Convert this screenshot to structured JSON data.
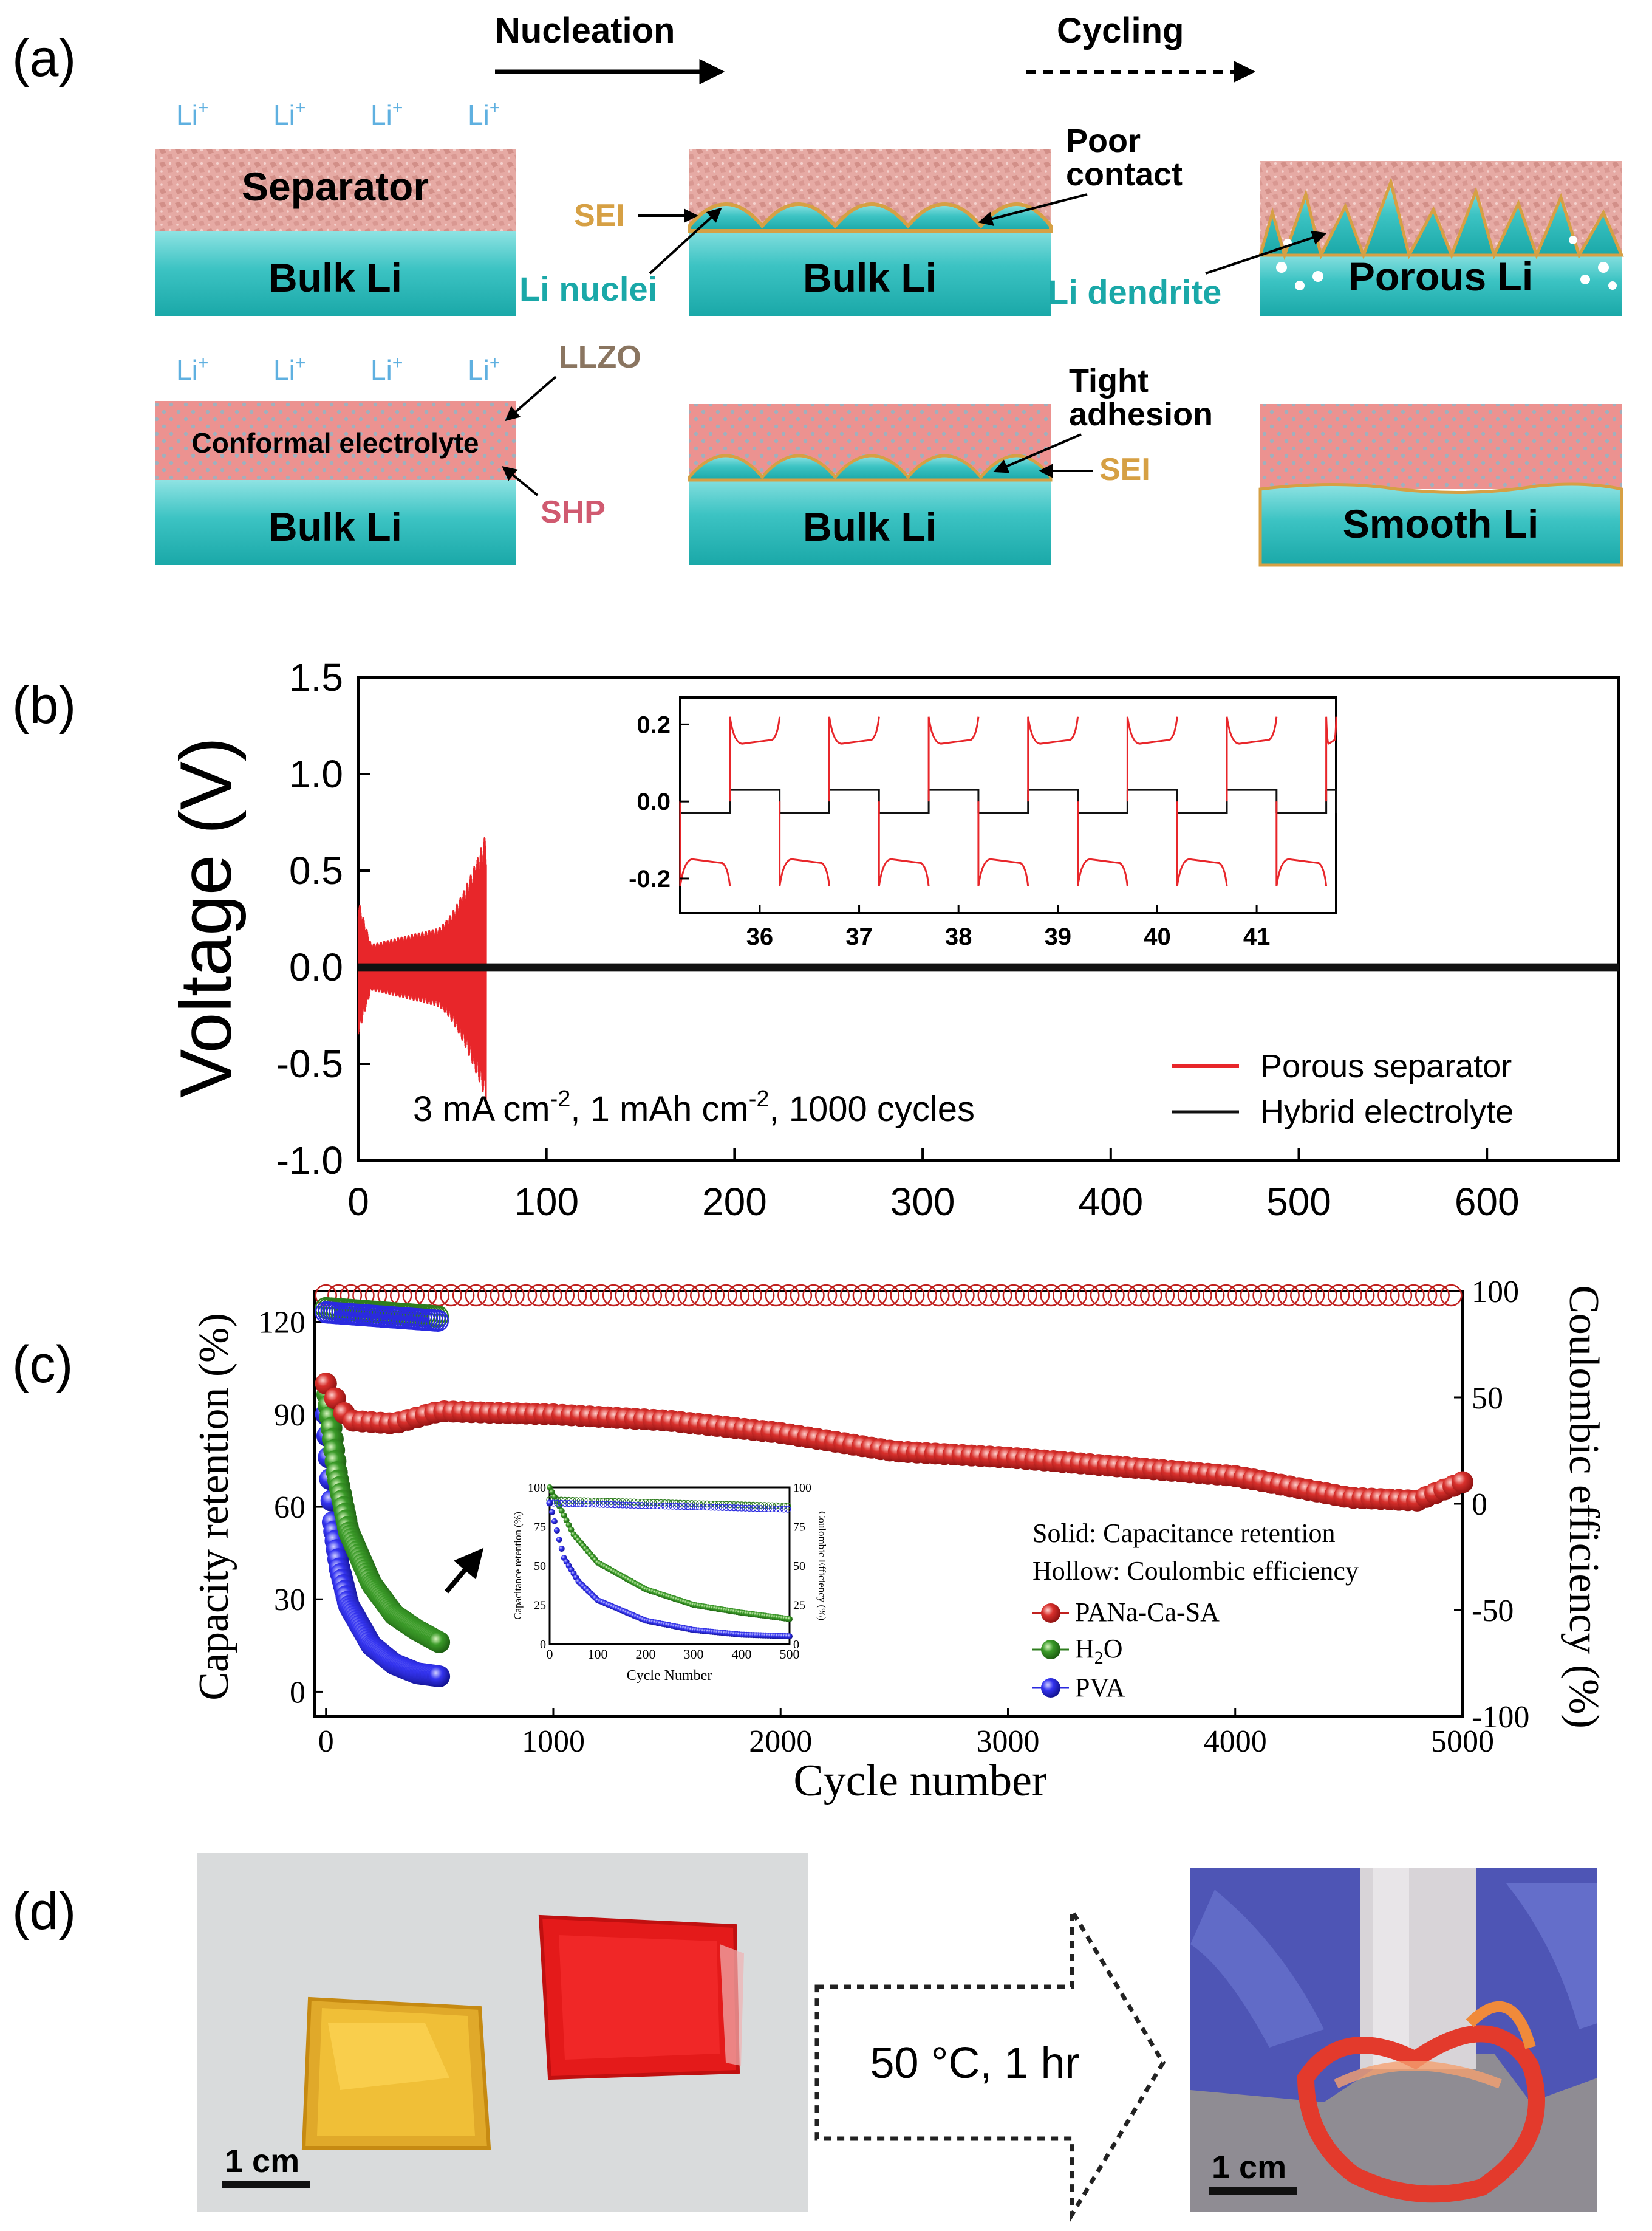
{
  "panel_labels": {
    "a": "(a)",
    "b": "(b)",
    "c": "(c)",
    "d": "(d)"
  },
  "panel_a": {
    "nucleation": "Nucleation",
    "cycling": "Cycling",
    "li_plus": "Li",
    "li_plus_sup": "+",
    "separator": "Separator",
    "bulk_li": "Bulk Li",
    "sei": "SEI",
    "li_nuclei": "Li nuclei",
    "poor_contact_1": "Poor",
    "poor_contact_2": "contact",
    "li_dendrite": "Li dendrite",
    "porous_li": "Porous Li",
    "llzo": "LLZO",
    "conformal_electrolyte": "Conformal electrolyte",
    "shp": "SHP",
    "tight_adhesion_1": "Tight",
    "tight_adhesion_2": "adhesion",
    "smooth_li": "Smooth Li",
    "colors": {
      "li": "#3cc3c3",
      "separator": "#d9908c",
      "sei": "#d6a044",
      "electrolyte": "#e88a88"
    }
  },
  "panel_b": {
    "chart_data": {
      "type": "line",
      "ylabel": "Voltage (V)",
      "xlabel": "",
      "xlim": [
        0,
        670
      ],
      "ylim": [
        -1.0,
        1.5
      ],
      "x_ticks": [
        "0",
        "100",
        "200",
        "300",
        "400",
        "500",
        "600"
      ],
      "y_ticks": [
        "1.5",
        "1.0",
        "0.5",
        "0.0",
        "-0.5",
        "-1.0"
      ],
      "condition_text": "3 mA cm",
      "condition_sup1": "-2",
      "condition_mid": ", 1 mAh cm",
      "condition_sup2": "-2",
      "condition_end": ", 1000 cycles",
      "series": [
        {
          "name": "Porous separator",
          "color": "#e8262a",
          "range_cycles": [
            0,
            68
          ],
          "amplitude_start": 0.35,
          "amplitude_mid": 0.12,
          "amplitude_end": 0.7
        },
        {
          "name": "Hybrid electrolyte",
          "color": "#111111",
          "range_cycles": [
            0,
            670
          ],
          "amplitude": 0.02
        }
      ],
      "inset": {
        "x_ticks": [
          "36",
          "37",
          "38",
          "39",
          "40",
          "41"
        ],
        "y_ticks": [
          "0.2",
          "0.0",
          "-0.2"
        ],
        "xlim": [
          35.2,
          41.8
        ],
        "ylim": [
          -0.29,
          0.27
        ],
        "porous_amplitude": 0.2,
        "hybrid_amplitude": 0.03
      }
    }
  },
  "panel_c": {
    "chart_data": {
      "type": "scatter",
      "xlabel": "Cycle number",
      "ylabel_left": "Capacity retention (%)",
      "ylabel_right": "Coulombic efficiency (%)",
      "xlim": [
        -50,
        5000
      ],
      "ylim_left": [
        -8,
        130
      ],
      "ylim_right": [
        -100,
        100
      ],
      "x_ticks": [
        "0",
        "1000",
        "2000",
        "3000",
        "4000",
        "5000"
      ],
      "y_ticks_left": [
        "120",
        "90",
        "60",
        "30",
        "0"
      ],
      "y_ticks_right": [
        "100",
        "50",
        "0",
        "-50",
        "-100"
      ],
      "legend_title_1": "Solid: Capacitance retention",
      "legend_title_2": "Hollow: Coulombic efficiency",
      "series": [
        {
          "name": "PANa-Ca-SA",
          "color": "#c0201e",
          "retention_points": [
            [
              0,
              100
            ],
            [
              100,
              88
            ],
            [
              300,
              87
            ],
            [
              500,
              91
            ],
            [
              1000,
              90
            ],
            [
              1500,
              88
            ],
            [
              2000,
              84
            ],
            [
              2500,
              78
            ],
            [
              3000,
              76
            ],
            [
              3500,
              73
            ],
            [
              4000,
              70
            ],
            [
              4500,
              63
            ],
            [
              4800,
              62
            ],
            [
              5000,
              68
            ]
          ],
          "ce": 98
        },
        {
          "name": "H2O",
          "color": "#2e7d1e",
          "retention_points": [
            [
              0,
              100
            ],
            [
              50,
              70
            ],
            [
              100,
              52
            ],
            [
              200,
              35
            ],
            [
              300,
              25
            ],
            [
              400,
              20
            ],
            [
              500,
              16
            ]
          ],
          "ce": 92
        },
        {
          "name": "PVA",
          "color": "#2a2ae0",
          "retention_points": [
            [
              0,
              90
            ],
            [
              30,
              55
            ],
            [
              60,
              40
            ],
            [
              100,
              28
            ],
            [
              200,
              15
            ],
            [
              300,
              9
            ],
            [
              400,
              6
            ],
            [
              500,
              5
            ]
          ],
          "ce": 90
        }
      ],
      "inset": {
        "xlabel": "Cycle Number",
        "ylabel_left": "Capacitance retention (%)",
        "ylabel_right": "Coulombic Efficiency (%)",
        "x_ticks": [
          "0",
          "100",
          "200",
          "300",
          "400",
          "500"
        ],
        "y_ticks": [
          "0",
          "25",
          "50",
          "75",
          "100"
        ]
      }
    }
  },
  "panel_d": {
    "condition": "50 °C, 1 hr",
    "scale_left": "1 cm",
    "scale_right": "1 cm"
  }
}
